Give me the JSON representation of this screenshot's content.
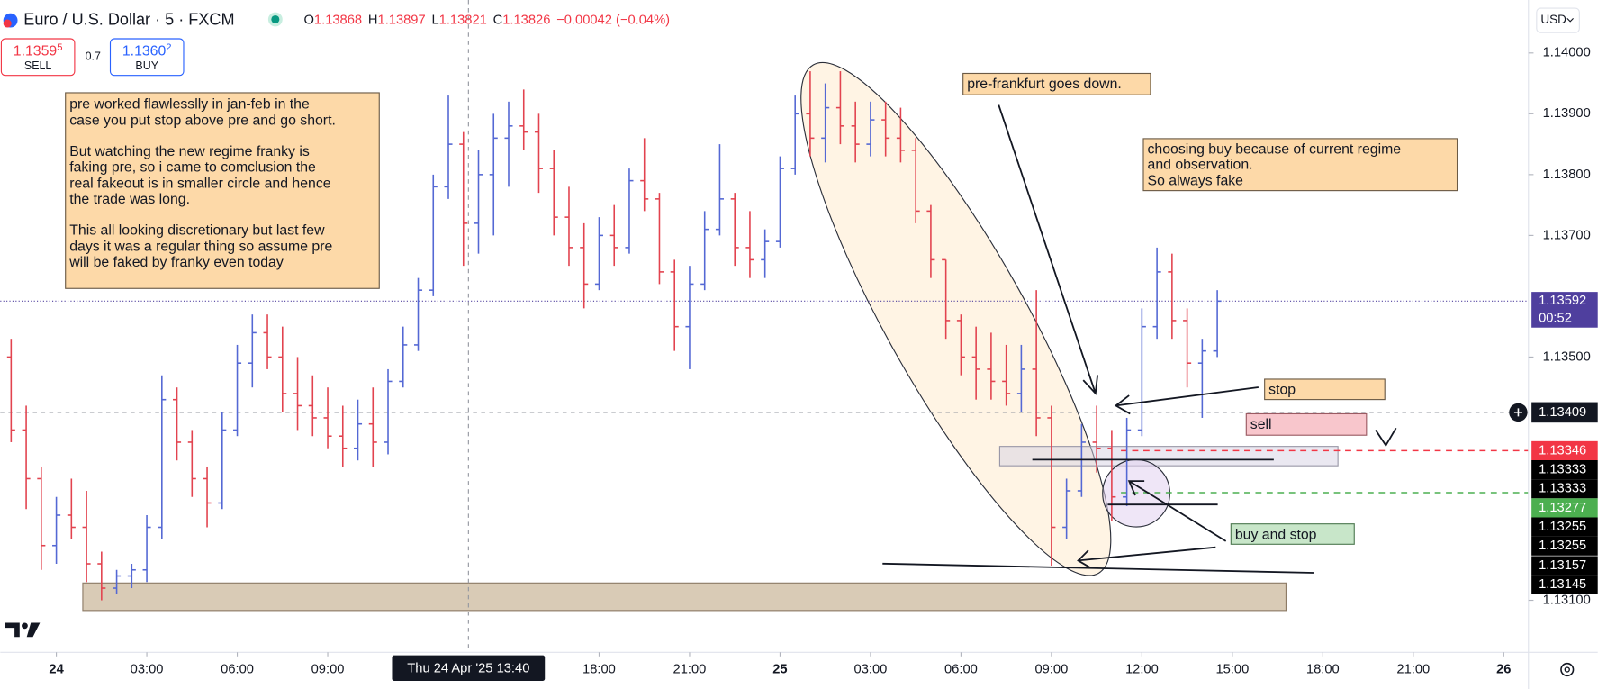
{
  "header": {
    "symbol": "Euro / U.S. Dollar · 5 · FXCM",
    "quote": [
      {
        "label": "O",
        "value": "1.13868"
      },
      {
        "label": "H",
        "value": "1.13897"
      },
      {
        "label": "L",
        "value": "1.13821"
      },
      {
        "label": "C",
        "value": "1.13826"
      }
    ],
    "change": "−0.00042 (−0.04%)",
    "currency": "USD"
  },
  "trade": {
    "sell": {
      "price": "1.1359",
      "pip": "5",
      "label": "SELL"
    },
    "spread": "0.7",
    "buy": {
      "price": "1.1360",
      "pip": "2",
      "label": "BUY"
    }
  },
  "annotations": {
    "note": [
      [
        "pre worked flawlesslly in jan-feb in the",
        "case you put stop above pre and go short."
      ],
      [
        "But watching the new regime franky is",
        "faking pre, so i came to comclusion the",
        "real fakeout is in smaller circle and hence",
        "the trade was long."
      ],
      [
        "This all looking discretionary but last few",
        "days it was a regular thing so assume pre",
        "will be faked by franky even today"
      ]
    ],
    "pre_frankfurt": "pre-frankfurt goes down.",
    "choosing": [
      "choosing buy because of current regime",
      "and observation.",
      "So always fake"
    ],
    "stop": "stop",
    "sell": "sell",
    "buy_and_stop": "buy and stop"
  },
  "chart_data": {
    "type": "ohlc",
    "up_color": "#5468d4",
    "down_color": "#e2434f",
    "x": [
      -1.5,
      -1,
      -0.5,
      0,
      0.5,
      1,
      1.5,
      2,
      2.5,
      3,
      3.5,
      4,
      4.5,
      5,
      5.5,
      6,
      6.5,
      7,
      7.5,
      8,
      8.5,
      9,
      9.5,
      10,
      10.5,
      11,
      11.5,
      12,
      12.5,
      13,
      13.5,
      14,
      14.5,
      15,
      15.5,
      16,
      16.5,
      17,
      17.5,
      18,
      18.5,
      19,
      19.5,
      20,
      20.5,
      21,
      21.5,
      22,
      22.5,
      23,
      23.5,
      24,
      24.5,
      25,
      25.5,
      26,
      26.5,
      27,
      27.5,
      28,
      28.5,
      29,
      29.5,
      30,
      30.5,
      31,
      31.5,
      32,
      32.5,
      33,
      33.5,
      34,
      34.5,
      35,
      35.5,
      36,
      36.5,
      37,
      37.5,
      38,
      38.5
    ],
    "open": [
      1.135,
      1.1338,
      1.133,
      1.1319,
      1.1324,
      1.1322,
      1.1316,
      1.1312,
      1.1314,
      1.1315,
      1.1322,
      1.1343,
      1.1336,
      1.133,
      1.1326,
      1.1338,
      1.1349,
      1.1354,
      1.135,
      1.1344,
      1.1342,
      1.134,
      1.1337,
      1.1335,
      1.1339,
      1.1336,
      1.1346,
      1.1352,
      1.1361,
      1.1378,
      1.1385,
      1.1372,
      1.138,
      1.1386,
      1.1388,
      1.1387,
      1.1381,
      1.1373,
      1.1368,
      1.1362,
      1.137,
      1.1368,
      1.1379,
      1.1376,
      1.1364,
      1.1355,
      1.1362,
      1.1371,
      1.1376,
      1.1368,
      1.1366,
      1.1369,
      1.1381,
      1.139,
      1.1386,
      1.1391,
      1.1388,
      1.1385,
      1.1389,
      1.1386,
      1.1384,
      1.1374,
      1.1366,
      1.1356,
      1.135,
      1.1348,
      1.1346,
      1.1344,
      1.1348,
      1.134,
      1.1322,
      1.1328,
      1.1336,
      1.1335,
      1.1327,
      1.1338,
      1.1355,
      1.1364,
      1.1356,
      1.1349,
      1.1351
    ],
    "high": [
      1.1353,
      1.1342,
      1.1332,
      1.1327,
      1.133,
      1.1328,
      1.1318,
      1.1315,
      1.1316,
      1.1324,
      1.1347,
      1.1345,
      1.1338,
      1.1332,
      1.1341,
      1.1352,
      1.1357,
      1.1357,
      1.1355,
      1.135,
      1.1347,
      1.1345,
      1.1342,
      1.1343,
      1.1345,
      1.1348,
      1.1355,
      1.1363,
      1.138,
      1.1393,
      1.1387,
      1.1384,
      1.139,
      1.1392,
      1.1394,
      1.139,
      1.1384,
      1.1378,
      1.1372,
      1.1373,
      1.1375,
      1.1381,
      1.1386,
      1.1377,
      1.1366,
      1.1365,
      1.1374,
      1.1385,
      1.1377,
      1.1374,
      1.1371,
      1.1383,
      1.1393,
      1.1397,
      1.1395,
      1.1397,
      1.1392,
      1.1392,
      1.1392,
      1.1391,
      1.1386,
      1.1375,
      1.1366,
      1.1357,
      1.1355,
      1.1354,
      1.1352,
      1.1352,
      1.1361,
      1.1342,
      1.133,
      1.1339,
      1.1342,
      1.1338,
      1.134,
      1.1358,
      1.1368,
      1.1367,
      1.1358,
      1.1353,
      1.1361
    ],
    "low": [
      1.1336,
      1.1325,
      1.1315,
      1.1316,
      1.132,
      1.1313,
      1.131,
      1.1311,
      1.1312,
      1.1313,
      1.132,
      1.1333,
      1.1327,
      1.1322,
      1.1325,
      1.1337,
      1.1345,
      1.1348,
      1.1341,
      1.1338,
      1.1337,
      1.1335,
      1.1332,
      1.1333,
      1.1332,
      1.1334,
      1.1345,
      1.1351,
      1.136,
      1.1376,
      1.1365,
      1.1367,
      1.137,
      1.1378,
      1.1384,
      1.1377,
      1.137,
      1.1365,
      1.1358,
      1.1361,
      1.1365,
      1.1367,
      1.1374,
      1.1362,
      1.1351,
      1.1348,
      1.1361,
      1.137,
      1.1365,
      1.1363,
      1.1363,
      1.1368,
      1.138,
      1.1383,
      1.1382,
      1.1385,
      1.1382,
      1.1383,
      1.1383,
      1.1382,
      1.1372,
      1.1363,
      1.1353,
      1.1347,
      1.1343,
      1.1343,
      1.1342,
      1.1341,
      1.1337,
      1.13157,
      1.132,
      1.1327,
      1.1331,
      1.1323,
      1.13255,
      1.1337,
      1.1353,
      1.1353,
      1.1345,
      1.134,
      1.135
    ],
    "close": [
      1.1338,
      1.133,
      1.1319,
      1.1324,
      1.1322,
      1.1316,
      1.1312,
      1.1314,
      1.1315,
      1.1322,
      1.1343,
      1.1336,
      1.133,
      1.1326,
      1.1338,
      1.1349,
      1.1354,
      1.135,
      1.1344,
      1.1342,
      1.134,
      1.1337,
      1.1335,
      1.1339,
      1.1336,
      1.1346,
      1.1352,
      1.1361,
      1.1378,
      1.1385,
      1.1372,
      1.138,
      1.1386,
      1.1388,
      1.1387,
      1.1381,
      1.1373,
      1.1368,
      1.1362,
      1.137,
      1.1368,
      1.1379,
      1.1376,
      1.1364,
      1.1355,
      1.1362,
      1.1371,
      1.1376,
      1.1368,
      1.1366,
      1.1369,
      1.1381,
      1.139,
      1.1386,
      1.1391,
      1.1388,
      1.1385,
      1.1389,
      1.1386,
      1.1384,
      1.1374,
      1.1366,
      1.1356,
      1.135,
      1.1348,
      1.1346,
      1.1344,
      1.1348,
      1.134,
      1.1322,
      1.1328,
      1.1336,
      1.1335,
      1.1327,
      1.1338,
      1.1355,
      1.1364,
      1.1356,
      1.1349,
      1.1351,
      1.13592
    ],
    "xlim": [
      -1.86,
      48.82
    ],
    "xticks": [
      {
        "value": 0,
        "label": "24"
      },
      {
        "value": 3,
        "label": "03:00"
      },
      {
        "value": 6,
        "label": "06:00"
      },
      {
        "value": 9,
        "label": "09:00"
      },
      {
        "value": 18,
        "label": "18:00"
      },
      {
        "value": 21,
        "label": "21:00"
      },
      {
        "value": 24,
        "label": "25"
      },
      {
        "value": 27,
        "label": "03:00"
      },
      {
        "value": 30,
        "label": "06:00"
      },
      {
        "value": 33,
        "label": "09:00"
      },
      {
        "value": 36,
        "label": "12:00"
      },
      {
        "value": 39,
        "label": "15:00"
      },
      {
        "value": 42,
        "label": "18:00"
      },
      {
        "value": 45,
        "label": "21:00"
      },
      {
        "value": 48,
        "label": "26"
      }
    ],
    "ylim": [
      1.130145,
      1.140871
    ],
    "yticks": [
      {
        "value": 1.131,
        "label": "1.13100"
      },
      {
        "value": 1.135,
        "label": "1.13500"
      },
      {
        "value": 1.137,
        "label": "1.13700"
      },
      {
        "value": 1.138,
        "label": "1.13800"
      },
      {
        "value": 1.139,
        "label": "1.13900"
      },
      {
        "value": 1.14,
        "label": "1.14000"
      }
    ],
    "crosshair": {
      "x": 13.667,
      "x_label": "Thu 24 Apr '25 13:40",
      "y": 1.13409,
      "y_label": "1.13409"
    },
    "last_price": {
      "value": 1.13592,
      "label": "1.13592",
      "countdown": "00:52",
      "color": "#4f3f9e"
    },
    "price_labels": [
      {
        "value": 1.13346,
        "label": "1.13346",
        "color": "#f23645",
        "dashed": true
      },
      {
        "value": 1.13333,
        "label": "1.13333",
        "color": "#000000"
      },
      {
        "value": 1.13333,
        "label": "1.13333",
        "color": "#000000"
      },
      {
        "value": 1.13277,
        "label": "1.13277",
        "color": "#4caf50",
        "dashed": true
      },
      {
        "value": 1.13255,
        "label": "1.13255",
        "color": "#000000"
      },
      {
        "value": 1.13255,
        "label": "1.13255",
        "color": "#000000"
      },
      {
        "value": 1.13157,
        "label": "1.13157",
        "color": "#000000"
      },
      {
        "value": 1.13145,
        "label": "1.13145",
        "color": "#000000"
      }
    ]
  }
}
